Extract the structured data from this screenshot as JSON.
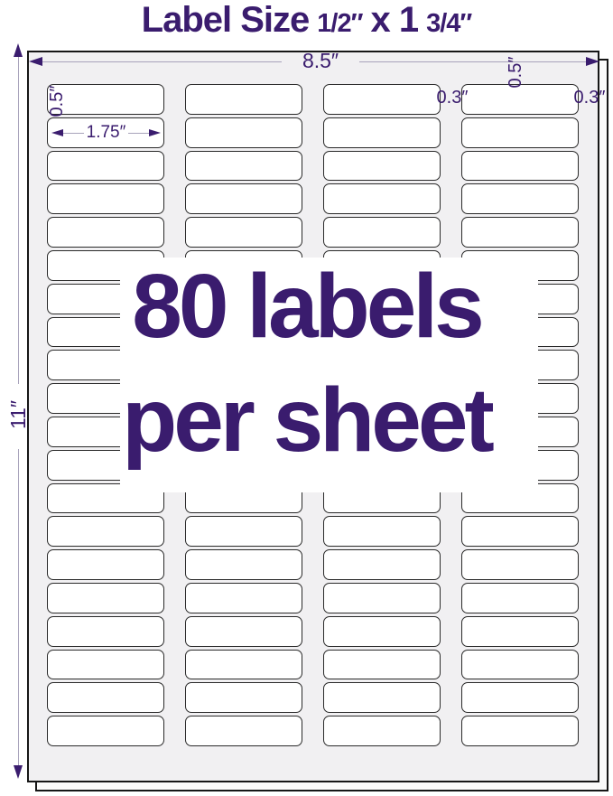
{
  "title": {
    "prefix": "Label Size",
    "fraction1": "1/2″",
    "middle": "x 1",
    "fraction2": "3/4″"
  },
  "dimensions": {
    "sheet_width": "8.5″",
    "sheet_height": "11″",
    "top_margin": "0.5″",
    "label_height": "0.5″",
    "label_width": "1.75″",
    "column_gap": "0.3″",
    "side_margin": "0.3″"
  },
  "overlay": {
    "line1": "80 labels",
    "line2": "per sheet"
  },
  "sheet": {
    "columns": 4,
    "rows": 20,
    "total_labels": 80
  },
  "colors": {
    "purple": "#3A1C6E",
    "dimension_line": "#A8A3BB",
    "sheet_background": "#F1F0F2",
    "label_border": "#2A2A2A"
  }
}
